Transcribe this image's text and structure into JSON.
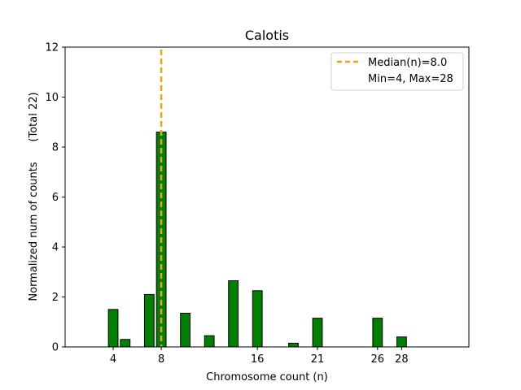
{
  "chart_data": {
    "type": "bar",
    "title": "Calotis",
    "xlabel": "Chromosome count (n)",
    "ylabel": "Normalized num of counts      (Total 22)",
    "xlim": [
      0,
      33.6
    ],
    "ylim": [
      0,
      12
    ],
    "xticks": [
      4,
      8,
      16,
      21,
      26,
      28
    ],
    "yticks": [
      0,
      2,
      4,
      6,
      8,
      10,
      12
    ],
    "bar_color": "#008000",
    "bar_edge_color": "#000000",
    "median_color": "#f0a30a",
    "bars": [
      {
        "x": 4,
        "value": 1.5
      },
      {
        "x": 5,
        "value": 0.3
      },
      {
        "x": 7,
        "value": 2.1
      },
      {
        "x": 8,
        "value": 8.6
      },
      {
        "x": 10,
        "value": 1.35
      },
      {
        "x": 12,
        "value": 0.45
      },
      {
        "x": 14,
        "value": 2.65
      },
      {
        "x": 16,
        "value": 2.25
      },
      {
        "x": 19,
        "value": 0.15
      },
      {
        "x": 21,
        "value": 1.15
      },
      {
        "x": 26,
        "value": 1.15
      },
      {
        "x": 28,
        "value": 0.4
      }
    ],
    "median": 8.0,
    "legend": {
      "position": "top-right",
      "median_label": "Median(n)=8.0",
      "range_label": "Min=4, Max=28"
    }
  }
}
